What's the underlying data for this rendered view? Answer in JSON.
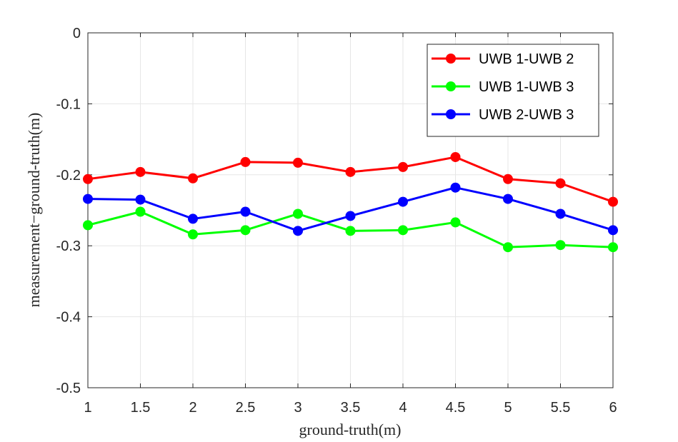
{
  "chart_data": {
    "type": "line",
    "xlabel": "ground-truth(m)",
    "ylabel": "measurement−ground-truth(m)",
    "xlim": [
      1,
      6
    ],
    "ylim": [
      -0.5,
      0
    ],
    "x": [
      1,
      1.5,
      2,
      2.5,
      3,
      3.5,
      4,
      4.5,
      5,
      5.5,
      6
    ],
    "x_ticks": [
      "1",
      "1.5",
      "2",
      "2.5",
      "3",
      "3.5",
      "4",
      "4.5",
      "5",
      "5.5",
      "6"
    ],
    "y_ticks": [
      {
        "value": 0,
        "label": "0"
      },
      {
        "value": -0.1,
        "label": "-0.1"
      },
      {
        "value": -0.2,
        "label": "-0.2"
      },
      {
        "value": -0.3,
        "label": "-0.3"
      },
      {
        "value": -0.4,
        "label": "-0.4"
      },
      {
        "value": -0.5,
        "label": "-0.5"
      }
    ],
    "grid": true,
    "legend_position": "top-right",
    "series": [
      {
        "name": "UWB 1-UWB 2",
        "color": "#ff0000",
        "values": [
          -0.206,
          -0.196,
          -0.205,
          -0.182,
          -0.183,
          -0.196,
          -0.189,
          -0.175,
          -0.206,
          -0.212,
          -0.238
        ]
      },
      {
        "name": "UWB 1-UWB 3",
        "color": "#00ff00",
        "values": [
          -0.271,
          -0.252,
          -0.284,
          -0.278,
          -0.255,
          -0.279,
          -0.278,
          -0.267,
          -0.302,
          -0.299,
          -0.302
        ]
      },
      {
        "name": "UWB 2-UWB 3",
        "color": "#0000ff",
        "values": [
          -0.234,
          -0.235,
          -0.262,
          -0.252,
          -0.279,
          -0.258,
          -0.238,
          -0.218,
          -0.234,
          -0.255,
          -0.278
        ]
      }
    ]
  }
}
